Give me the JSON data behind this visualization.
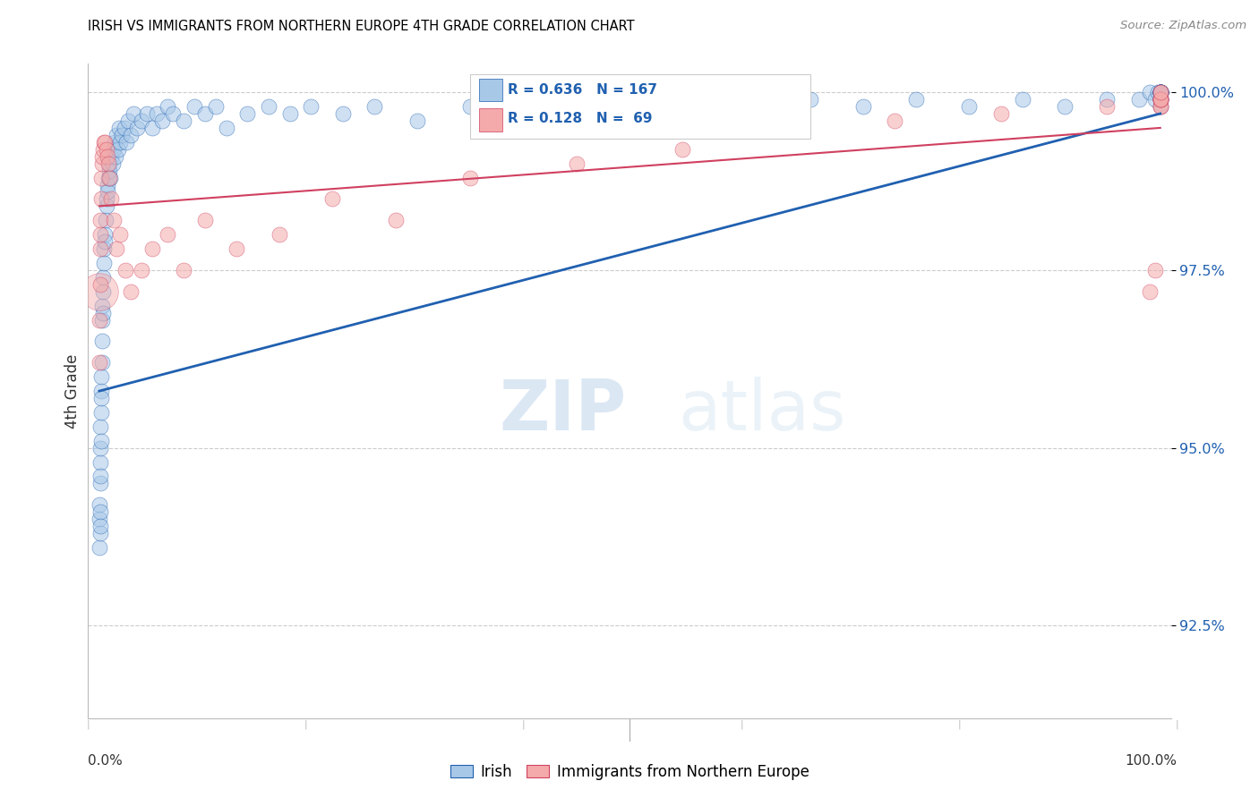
{
  "title": "IRISH VS IMMIGRANTS FROM NORTHERN EUROPE 4TH GRADE CORRELATION CHART",
  "source": "Source: ZipAtlas.com",
  "ylabel": "4th Grade",
  "ytick_values": [
    92.5,
    95.0,
    97.5,
    100.0
  ],
  "ymin": 91.2,
  "ymax": 100.4,
  "blue_color": "#a8c8e8",
  "pink_color": "#f4aaaa",
  "line_blue_color": "#2060b0",
  "line_pink_color": "#d04060",
  "watermark_zip": "ZIP",
  "watermark_atlas": "atlas",
  "legend_label_blue": "Irish",
  "legend_label_pink": "Immigrants from Northern Europe",
  "legend_blue_r": "R = 0.636",
  "legend_blue_n": "N = 167",
  "legend_pink_r": "R = 0.128",
  "legend_pink_n": "N =  69",
  "blue_x": [
    0.08,
    0.09,
    0.1,
    0.11,
    0.12,
    0.13,
    0.14,
    0.15,
    0.16,
    0.17,
    0.18,
    0.19,
    0.2,
    0.22,
    0.24,
    0.26,
    0.28,
    0.3,
    0.32,
    0.34,
    0.36,
    0.38,
    0.4,
    0.45,
    0.5,
    0.55,
    0.6,
    0.65,
    0.7,
    0.75,
    0.8,
    0.85,
    0.9,
    0.95,
    1.0,
    1.1,
    1.2,
    1.3,
    1.4,
    1.5,
    1.6,
    1.7,
    1.8,
    1.9,
    2.0,
    2.2,
    2.4,
    2.6,
    2.8,
    3.0,
    3.3,
    3.6,
    4.0,
    4.5,
    5.0,
    5.5,
    6.0,
    6.5,
    7.0,
    8.0,
    9.0,
    10.0,
    11.0,
    12.0,
    14.0,
    16.0,
    18.0,
    20.0,
    23.0,
    26.0,
    30.0,
    35.0,
    38.0,
    42.0,
    48.0,
    53.0,
    58.0,
    63.0,
    67.0,
    72.0,
    77.0,
    82.0,
    87.0,
    91.0,
    95.0,
    98.0,
    99.0,
    99.5,
    99.8,
    100.0,
    100.0,
    100.0,
    100.0,
    100.0,
    100.0,
    100.0,
    100.0,
    100.0,
    100.0,
    100.0,
    100.0,
    100.0,
    100.0,
    100.0
  ],
  "blue_y": [
    94.0,
    93.6,
    94.2,
    93.8,
    94.5,
    94.1,
    93.9,
    94.8,
    95.0,
    94.6,
    95.3,
    95.1,
    95.5,
    95.8,
    96.0,
    95.7,
    96.2,
    96.5,
    96.8,
    97.0,
    96.9,
    97.2,
    97.4,
    97.6,
    97.8,
    98.0,
    97.9,
    98.2,
    98.4,
    98.5,
    98.7,
    98.6,
    98.8,
    98.9,
    99.0,
    98.8,
    99.1,
    99.0,
    99.2,
    99.3,
    99.1,
    99.4,
    99.2,
    99.5,
    99.3,
    99.4,
    99.5,
    99.3,
    99.6,
    99.4,
    99.7,
    99.5,
    99.6,
    99.7,
    99.5,
    99.7,
    99.6,
    99.8,
    99.7,
    99.6,
    99.8,
    99.7,
    99.8,
    99.5,
    99.7,
    99.8,
    99.7,
    99.8,
    99.7,
    99.8,
    99.6,
    99.8,
    99.7,
    99.8,
    99.7,
    99.8,
    99.8,
    99.7,
    99.9,
    99.8,
    99.9,
    99.8,
    99.9,
    99.8,
    99.9,
    99.9,
    100.0,
    99.9,
    100.0,
    99.9,
    99.8,
    100.0,
    99.9,
    100.0,
    99.9,
    100.0,
    100.0,
    100.0,
    100.0,
    100.0,
    100.0,
    100.0,
    100.0,
    100.0
  ],
  "pink_x": [
    0.08,
    0.1,
    0.12,
    0.14,
    0.16,
    0.18,
    0.2,
    0.24,
    0.28,
    0.35,
    0.42,
    0.5,
    0.6,
    0.7,
    0.8,
    0.9,
    1.0,
    1.2,
    1.4,
    1.7,
    2.0,
    2.5,
    3.0,
    4.0,
    5.0,
    6.5,
    8.0,
    10.0,
    13.0,
    17.0,
    22.0,
    28.0,
    35.0,
    45.0,
    55.0,
    65.0,
    75.0,
    85.0,
    95.0,
    100.0,
    100.0,
    100.0,
    100.0,
    100.0,
    100.0,
    100.0,
    100.0,
    100.0,
    99.5,
    99.0
  ],
  "pink_y": [
    96.2,
    96.8,
    97.3,
    97.8,
    98.2,
    98.0,
    98.5,
    98.8,
    99.0,
    99.1,
    99.2,
    99.3,
    99.3,
    99.2,
    99.1,
    99.0,
    98.8,
    98.5,
    98.2,
    97.8,
    98.0,
    97.5,
    97.2,
    97.5,
    97.8,
    98.0,
    97.5,
    98.2,
    97.8,
    98.0,
    98.5,
    98.2,
    98.8,
    99.0,
    99.2,
    99.5,
    99.6,
    99.7,
    99.8,
    99.9,
    99.8,
    99.9,
    99.8,
    99.9,
    99.9,
    100.0,
    99.9,
    100.0,
    97.5,
    97.2
  ],
  "pink_large_x": [
    0.05
  ],
  "pink_large_y": [
    97.2
  ],
  "blue_trend_x": [
    0.05,
    100.0
  ],
  "blue_trend_y": [
    95.8,
    99.7
  ],
  "pink_trend_x": [
    0.05,
    100.0
  ],
  "pink_trend_y": [
    98.4,
    99.5
  ],
  "xtick_positions": [
    0.0,
    20.0,
    40.0,
    60.0,
    80.0,
    100.0
  ],
  "xline_at": [
    50.0
  ]
}
